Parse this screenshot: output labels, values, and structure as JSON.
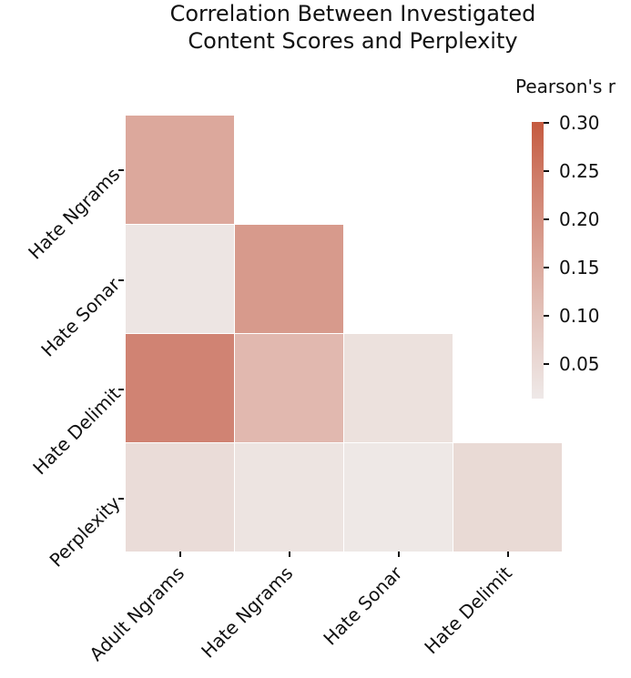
{
  "chart_data": {
    "type": "heatmap",
    "title": "Correlation Between Investigated Content Scores and Perplexity",
    "title_lines": [
      "Correlation Between Investigated",
      "Content Scores and Perplexity"
    ],
    "x_categories": [
      "Adult Ngrams",
      "Hate Ngrams",
      "Hate Sonar",
      "Hate Delimit"
    ],
    "y_categories": [
      "Hate Ngrams",
      "Hate Sonar",
      "Hate Delimit",
      "Perplexity"
    ],
    "mask": "upper triangle (lower-triangular correlation matrix)",
    "values": [
      [
        0.13,
        null,
        null,
        null
      ],
      [
        0.02,
        0.16,
        null,
        null
      ],
      [
        0.21,
        0.1,
        0.035,
        null
      ],
      [
        0.04,
        0.025,
        0.015,
        0.045
      ]
    ],
    "colorbar": {
      "label": "Pearson's r",
      "ticks": [
        "0.30",
        "0.25",
        "0.20",
        "0.15",
        "0.10",
        "0.05"
      ],
      "range": [
        0.015,
        0.3
      ],
      "low_color": "#efe9e8",
      "high_color": "#c55a3f"
    },
    "xlabel": "",
    "ylabel": ""
  },
  "cells": [
    {
      "row": 0,
      "col": 0,
      "color": "#dca89c"
    },
    {
      "row": 1,
      "col": 0,
      "color": "#ede5e3"
    },
    {
      "row": 1,
      "col": 1,
      "color": "#d79a8c"
    },
    {
      "row": 2,
      "col": 0,
      "color": "#d08373"
    },
    {
      "row": 2,
      "col": 1,
      "color": "#e1b8af"
    },
    {
      "row": 2,
      "col": 2,
      "color": "#ece1dd"
    },
    {
      "row": 3,
      "col": 0,
      "color": "#eadcd8"
    },
    {
      "row": 3,
      "col": 1,
      "color": "#ede4e1"
    },
    {
      "row": 3,
      "col": 2,
      "color": "#eee8e6"
    },
    {
      "row": 3,
      "col": 3,
      "color": "#e9dad5"
    }
  ]
}
